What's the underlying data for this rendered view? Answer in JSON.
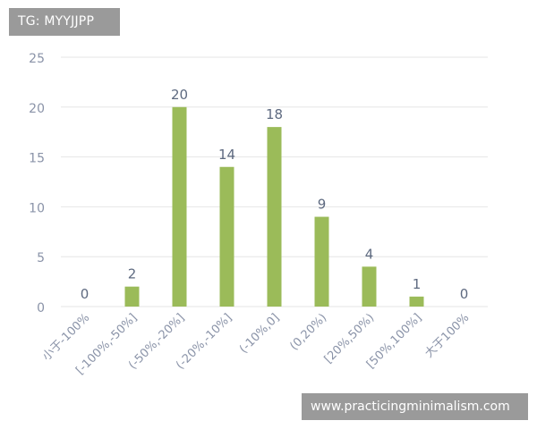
{
  "header": {
    "tag_text": "TG: MYYJJPP"
  },
  "footer": {
    "watermark_text": "www.practicingminimalism.com"
  },
  "colors": {
    "bar": "#9bbb59",
    "grid": "#e6e6e6",
    "axis_text": "#8a93a8",
    "label_text": "#5e6a80",
    "tag_bg": "#9a9a9a"
  },
  "chart_data": {
    "type": "bar",
    "title": "",
    "xlabel": "",
    "ylabel": "",
    "ylim": [
      0,
      25
    ],
    "yticks": [
      0,
      5,
      10,
      15,
      20,
      25
    ],
    "grid": true,
    "categories": [
      "小于-100%",
      "[-100%,-50%]",
      "(-50%,-20%]",
      "(-20%,-10%]",
      "(-10%,0]",
      "(0,20%)",
      "[20%,50%)",
      "[50%,100%]",
      "大于100%"
    ],
    "values": [
      0,
      2,
      20,
      14,
      18,
      9,
      4,
      1,
      0
    ]
  }
}
